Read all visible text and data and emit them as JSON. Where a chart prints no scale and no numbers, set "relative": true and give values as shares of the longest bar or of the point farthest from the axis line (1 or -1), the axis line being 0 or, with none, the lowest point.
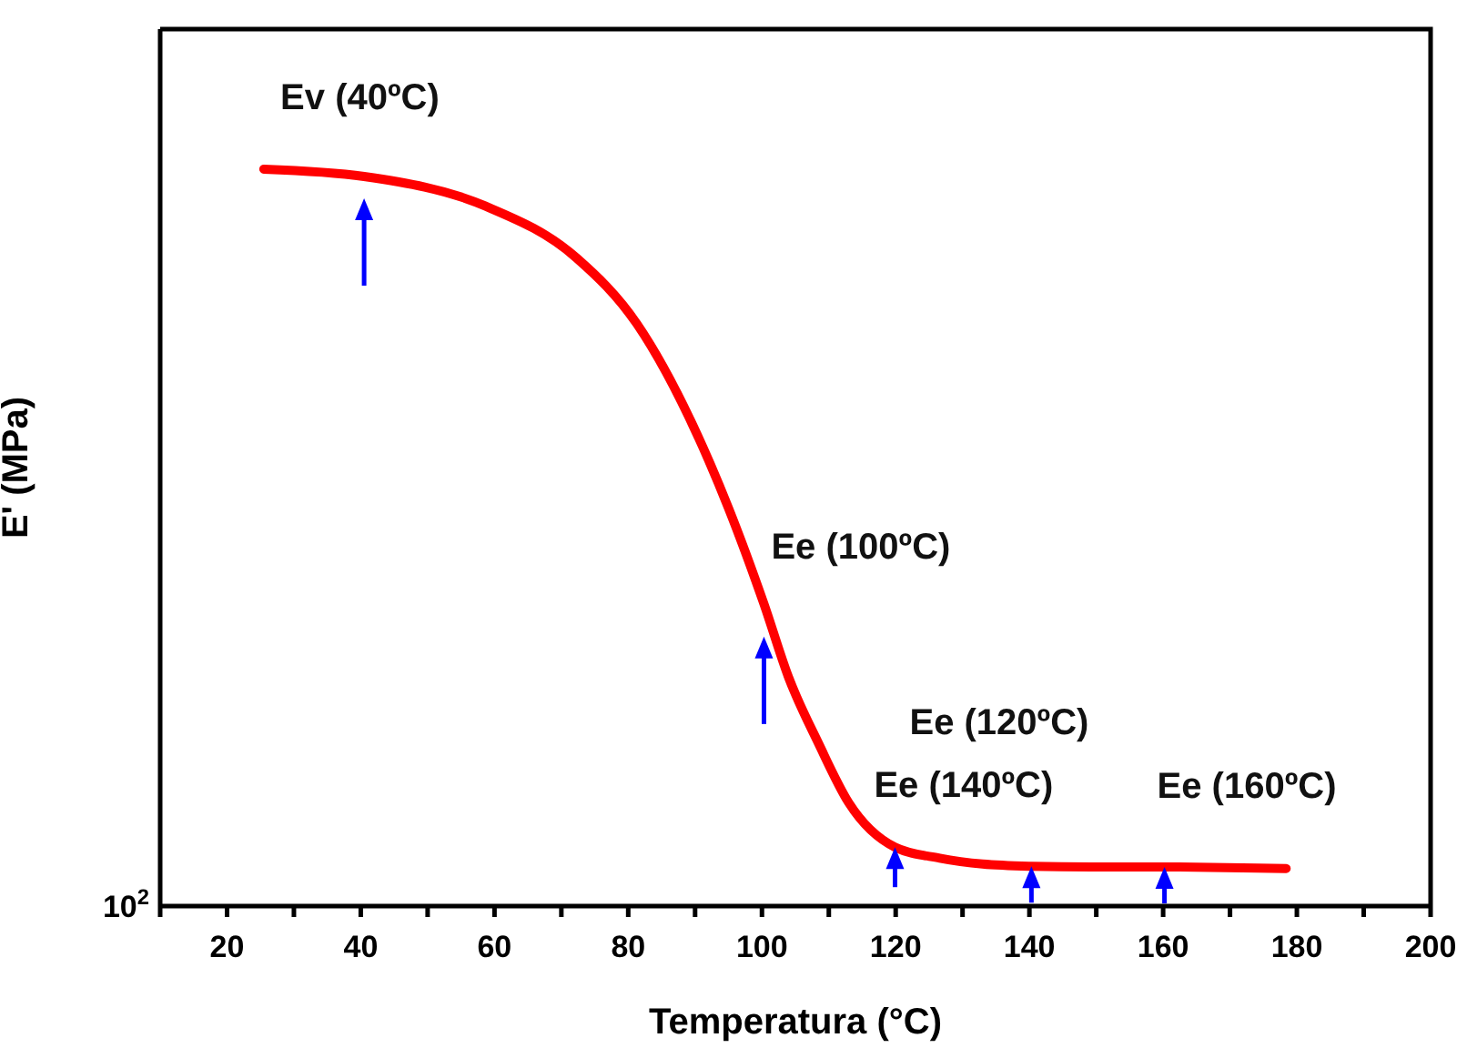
{
  "chart_data": {
    "type": "line",
    "xlabel": "Temperatura (°C)",
    "ylabel": "E' (MPa)",
    "relative": true,
    "x": [
      25.5,
      40.5,
      58.6,
      72.2,
      81.3,
      90.3,
      95,
      100.3,
      104,
      108.5,
      113,
      119.9,
      126.6,
      133,
      140.3,
      149.3,
      160.2,
      171.9,
      178.4
    ],
    "series": [
      {
        "color": "#ff0000",
        "values": [
          1,
          0.99,
          0.95,
          0.88,
          0.79,
          0.64,
          0.54,
          0.41,
          0.31,
          0.22,
          0.14,
          0.08,
          0.065,
          0.057,
          0.054,
          0.053,
          0.053,
          0.052,
          0.051
        ]
      }
    ],
    "xlim": [
      10,
      200
    ],
    "xticks": [
      {
        "value": 10,
        "label": null
      },
      20,
      {
        "value": 30,
        "label": null
      },
      40,
      {
        "value": 50,
        "label": null
      },
      60,
      {
        "value": 70,
        "label": null
      },
      80,
      {
        "value": 90,
        "label": null
      },
      100,
      {
        "value": 110,
        "label": null
      },
      120,
      {
        "value": 130,
        "label": null
      },
      140,
      {
        "value": 150,
        "label": null
      },
      160,
      {
        "value": 170,
        "label": null
      },
      180,
      {
        "value": 190,
        "label": null
      },
      200
    ],
    "annotations": [
      "10$^{2}$",
      {
        "text": "Ev (40ºC)",
        "x": 40.5,
        "y": 0.99
      },
      {
        "text": "Ee (100ºC)",
        "x": 100.3,
        "y": 0.41
      },
      {
        "text": "Ee (120ºC)",
        "x": 119.9,
        "y": 0.08
      },
      {
        "text": "Ee (140ºC)",
        "x": 140.3,
        "y": 0.054
      },
      {
        "text": "Ee (160ºC)",
        "x": 160.2,
        "y": 0.053
      }
    ],
    "grid": false,
    "marker": "none",
    "line_style": "solid"
  }
}
